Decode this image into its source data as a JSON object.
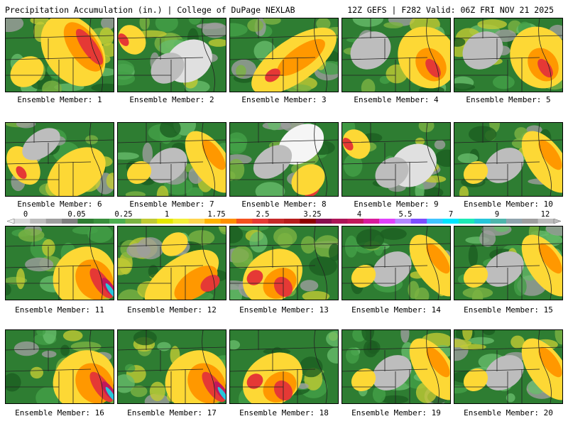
{
  "header": {
    "title_left": "Precipitation Accumulation (in.) | College of DuPage NEXLAB",
    "title_right": "12Z GEFS | F282 Valid: 06Z FRI NOV 21 2025"
  },
  "legend": {
    "tick_labels": [
      "0",
      "0.05",
      "0.25",
      "1",
      "1.75",
      "2.5",
      "3.25",
      "4",
      "5.5",
      "7",
      "9",
      "12"
    ],
    "colors": [
      "#d9d9d9",
      "#bdbdbd",
      "#9e9e9e",
      "#7f7f7f",
      "#2e7d32",
      "#388e3c",
      "#4caf50",
      "#7cb342",
      "#c0ca33",
      "#e5e800",
      "#f3ef3a",
      "#ffd54f",
      "#ffb300",
      "#ff8f00",
      "#f4511e",
      "#e53935",
      "#c62828",
      "#b71c1c",
      "#8e0000",
      "#880e4f",
      "#ad1457",
      "#c2185b",
      "#d81b9b",
      "#e040fb",
      "#b388ff",
      "#7c4dff",
      "#40c4ff",
      "#00e5ff",
      "#1de9b6",
      "#26c6da",
      "#4db6ac",
      "#90a4ae",
      "#9e9e9e",
      "#bdbdbd"
    ]
  },
  "members": [
    {
      "label": "Ensemble Member: 1",
      "pattern": "central-n-s-band"
    },
    {
      "label": "Ensemble Member: 2",
      "pattern": "dry-center"
    },
    {
      "label": "Ensemble Member: 3",
      "pattern": "sw-ne-band"
    },
    {
      "label": "Ensemble Member: 4",
      "pattern": "se-band"
    },
    {
      "label": "Ensemble Member: 5",
      "pattern": "se-band"
    },
    {
      "label": "Ensemble Member: 6",
      "pattern": "west-pockets"
    },
    {
      "label": "Ensemble Member: 7",
      "pattern": "east-band"
    },
    {
      "label": "Ensemble Member: 8",
      "pattern": "dry-north"
    },
    {
      "label": "Ensemble Member: 9",
      "pattern": "dry-center"
    },
    {
      "label": "Ensemble Member: 10",
      "pattern": "east-band"
    },
    {
      "label": "Ensemble Member: 11",
      "pattern": "se-intense"
    },
    {
      "label": "Ensemble Member: 12",
      "pattern": "south-band"
    },
    {
      "label": "Ensemble Member: 13",
      "pattern": "sw-intense"
    },
    {
      "label": "Ensemble Member: 14",
      "pattern": "east-band"
    },
    {
      "label": "Ensemble Member: 15",
      "pattern": "east-band"
    },
    {
      "label": "Ensemble Member: 16",
      "pattern": "se-intense"
    },
    {
      "label": "Ensemble Member: 17",
      "pattern": "se-intense"
    },
    {
      "label": "Ensemble Member: 18",
      "pattern": "sw-intense"
    },
    {
      "label": "Ensemble Member: 19",
      "pattern": "east-band"
    },
    {
      "label": "Ensemble Member: 20",
      "pattern": "east-band"
    }
  ]
}
